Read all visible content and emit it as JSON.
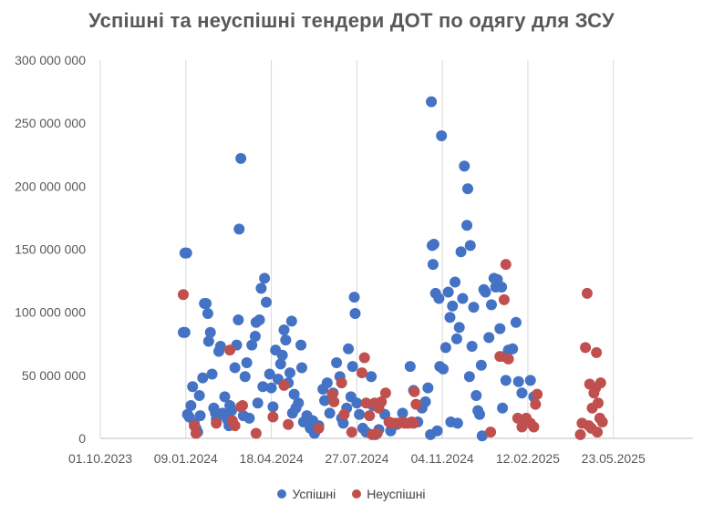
{
  "chart_data": {
    "type": "scatter",
    "title": "Успішні та неуспішні тендери ДОТ по одягу для ЗСУ",
    "xlabel": "",
    "ylabel": "",
    "x_tick_labels": [
      "01.10.2023",
      "09.01.2024",
      "18.04.2024",
      "27.07.2024",
      "04.11.2024",
      "12.02.2025",
      "23.05.2025"
    ],
    "y_tick_labels": [
      "0",
      "50 000 000",
      "100 000 000",
      "150 000 000",
      "200 000 000",
      "250 000 000",
      "300 000 000"
    ],
    "xlim": [
      "2023-10-01",
      "2025-08-31"
    ],
    "ylim": [
      0,
      300000000
    ],
    "grid": "vertical",
    "legend": "bottom",
    "series": [
      {
        "name": "Успішні",
        "color": "#4472C4",
        "points": [
          [
            "2024-01-09",
            147000000
          ],
          [
            "2024-01-11",
            147000000
          ],
          [
            "2024-01-07",
            84000000
          ],
          [
            "2024-01-09",
            84000000
          ],
          [
            "2024-01-12",
            19000000
          ],
          [
            "2024-01-14",
            17000000
          ],
          [
            "2024-01-16",
            26000000
          ],
          [
            "2024-01-18",
            41000000
          ],
          [
            "2024-01-20",
            12000000
          ],
          [
            "2024-01-22",
            8000000
          ],
          [
            "2024-01-24",
            5000000
          ],
          [
            "2024-01-27",
            18000000
          ],
          [
            "2024-01-30",
            48000000
          ],
          [
            "2024-02-01",
            107000000
          ],
          [
            "2024-02-03",
            107000000
          ],
          [
            "2024-02-05",
            99000000
          ],
          [
            "2024-02-06",
            77000000
          ],
          [
            "2024-02-08",
            84000000
          ],
          [
            "2024-02-10",
            51000000
          ],
          [
            "2024-02-12",
            24000000
          ],
          [
            "2024-02-15",
            15000000
          ],
          [
            "2024-02-18",
            69000000
          ],
          [
            "2024-02-20",
            73000000
          ],
          [
            "2024-02-22",
            20000000
          ],
          [
            "2024-02-25",
            33000000
          ],
          [
            "2024-02-28",
            15000000
          ],
          [
            "2024-03-01",
            10000000
          ],
          [
            "2024-03-04",
            22000000
          ],
          [
            "2024-03-08",
            56000000
          ],
          [
            "2024-03-10",
            74000000
          ],
          [
            "2024-03-12",
            94000000
          ],
          [
            "2024-03-13",
            166000000
          ],
          [
            "2024-03-15",
            222000000
          ],
          [
            "2024-03-20",
            49000000
          ],
          [
            "2024-03-22",
            60000000
          ],
          [
            "2024-03-25",
            16000000
          ],
          [
            "2024-03-28",
            74000000
          ],
          [
            "2024-04-01",
            81000000
          ],
          [
            "2024-04-02",
            92000000
          ],
          [
            "2024-04-08",
            119000000
          ],
          [
            "2024-04-06",
            94000000
          ],
          [
            "2024-04-12",
            127000000
          ],
          [
            "2024-04-14",
            108000000
          ],
          [
            "2024-04-10",
            41000000
          ],
          [
            "2024-04-18",
            51000000
          ],
          [
            "2024-04-20",
            40000000
          ],
          [
            "2024-04-22",
            25000000
          ],
          [
            "2024-04-25",
            70000000
          ],
          [
            "2024-04-28",
            47000000
          ],
          [
            "2024-05-01",
            59000000
          ],
          [
            "2024-05-03",
            66000000
          ],
          [
            "2024-05-05",
            86000000
          ],
          [
            "2024-05-07",
            78000000
          ],
          [
            "2024-05-10",
            44000000
          ],
          [
            "2024-05-12",
            52000000
          ],
          [
            "2024-05-14",
            93000000
          ],
          [
            "2024-05-17",
            35000000
          ],
          [
            "2024-05-19",
            24000000
          ],
          [
            "2024-05-22",
            28000000
          ],
          [
            "2024-05-25",
            74000000
          ],
          [
            "2024-05-26",
            56000000
          ],
          [
            "2024-05-28",
            13000000
          ],
          [
            "2024-06-01",
            18000000
          ],
          [
            "2024-06-05",
            8000000
          ],
          [
            "2024-06-10",
            4000000
          ],
          [
            "2024-06-15",
            10000000
          ],
          [
            "2024-06-20",
            39000000
          ],
          [
            "2024-06-22",
            30000000
          ],
          [
            "2024-06-25",
            44000000
          ],
          [
            "2024-06-28",
            20000000
          ],
          [
            "2024-07-02",
            36000000
          ],
          [
            "2024-07-06",
            60000000
          ],
          [
            "2024-07-10",
            49000000
          ],
          [
            "2024-07-14",
            12000000
          ],
          [
            "2024-07-18",
            24000000
          ],
          [
            "2024-07-20",
            71000000
          ],
          [
            "2024-07-23",
            33000000
          ],
          [
            "2024-07-25",
            57000000
          ],
          [
            "2024-07-27",
            112000000
          ],
          [
            "2024-07-28",
            99000000
          ],
          [
            "2024-07-30",
            28000000
          ],
          [
            "2024-08-02",
            19000000
          ],
          [
            "2024-08-06",
            8000000
          ],
          [
            "2024-08-10",
            5000000
          ],
          [
            "2024-08-16",
            49000000
          ],
          [
            "2024-08-18",
            26000000
          ],
          [
            "2024-08-21",
            3000000
          ],
          [
            "2024-08-25",
            7000000
          ],
          [
            "2024-09-01",
            19000000
          ],
          [
            "2024-09-08",
            6000000
          ],
          [
            "2024-09-15",
            11000000
          ],
          [
            "2024-09-22",
            20000000
          ],
          [
            "2024-10-01",
            57000000
          ],
          [
            "2024-10-05",
            38000000
          ],
          [
            "2024-10-10",
            13000000
          ],
          [
            "2024-10-15",
            24000000
          ],
          [
            "2024-10-19",
            29000000
          ],
          [
            "2024-10-22",
            40000000
          ],
          [
            "2024-10-25",
            3000000
          ],
          [
            "2024-10-26",
            267000000
          ],
          [
            "2024-10-27",
            153000000
          ],
          [
            "2024-10-29",
            154000000
          ],
          [
            "2024-10-28",
            138000000
          ],
          [
            "2024-10-31",
            115000000
          ],
          [
            "2024-11-04",
            111000000
          ],
          [
            "2024-11-07",
            240000000
          ],
          [
            "2024-11-05",
            57000000
          ],
          [
            "2024-11-09",
            55000000
          ],
          [
            "2024-11-12",
            72000000
          ],
          [
            "2024-11-15",
            116000000
          ],
          [
            "2024-11-17",
            96000000
          ],
          [
            "2024-11-20",
            105000000
          ],
          [
            "2024-11-23",
            124000000
          ],
          [
            "2024-11-25",
            79000000
          ],
          [
            "2024-11-28",
            88000000
          ],
          [
            "2024-11-30",
            148000000
          ],
          [
            "2024-12-02",
            111000000
          ],
          [
            "2024-12-04",
            216000000
          ],
          [
            "2024-12-07",
            169000000
          ],
          [
            "2024-12-08",
            198000000
          ],
          [
            "2024-12-11",
            153000000
          ],
          [
            "2024-12-13",
            73000000
          ],
          [
            "2024-12-15",
            104000000
          ],
          [
            "2024-12-10",
            49000000
          ],
          [
            "2024-12-18",
            34000000
          ],
          [
            "2024-12-20",
            22000000
          ],
          [
            "2024-12-24",
            58000000
          ],
          [
            "2024-12-27",
            118000000
          ],
          [
            "2024-12-29",
            116000000
          ],
          [
            "2025-01-02",
            80000000
          ],
          [
            "2025-01-05",
            106000000
          ],
          [
            "2025-01-08",
            127000000
          ],
          [
            "2025-01-10",
            120000000
          ],
          [
            "2025-01-12",
            126000000
          ],
          [
            "2025-01-15",
            87000000
          ],
          [
            "2025-01-17",
            120000000
          ],
          [
            "2025-01-20",
            65000000
          ],
          [
            "2025-01-22",
            46000000
          ],
          [
            "2025-01-25",
            70000000
          ],
          [
            "2025-01-30",
            71000000
          ],
          [
            "2025-02-03",
            92000000
          ],
          [
            "2025-02-06",
            45000000
          ],
          [
            "2025-02-10",
            36000000
          ],
          [
            "2025-02-14",
            15000000
          ],
          [
            "2025-02-20",
            46000000
          ],
          [
            "2025-02-24",
            33000000
          ],
          [
            "2025-01-18",
            24000000
          ],
          [
            "2024-12-25",
            2000000
          ],
          [
            "2024-11-18",
            13000000
          ],
          [
            "2024-11-26",
            12000000
          ],
          [
            "2024-12-22",
            19000000
          ],
          [
            "2024-11-02",
            6000000
          ],
          [
            "2024-03-18",
            18000000
          ],
          [
            "2024-04-04",
            28000000
          ],
          [
            "2024-05-15",
            20000000
          ],
          [
            "2024-06-08",
            14000000
          ],
          [
            "2024-01-26",
            34000000
          ],
          [
            "2024-02-14",
            20000000
          ],
          [
            "2024-03-02",
            26000000
          ],
          [
            "2024-07-12",
            16000000
          ]
        ]
      },
      {
        "name": "Неуспішні",
        "color": "#C0504D",
        "points": [
          [
            "2024-01-07",
            114000000
          ],
          [
            "2024-01-20",
            10000000
          ],
          [
            "2024-01-22",
            4000000
          ],
          [
            "2024-02-15",
            12000000
          ],
          [
            "2024-03-02",
            70000000
          ],
          [
            "2024-03-05",
            14000000
          ],
          [
            "2024-03-08",
            10000000
          ],
          [
            "2024-03-15",
            25000000
          ],
          [
            "2024-03-17",
            26000000
          ],
          [
            "2024-04-02",
            4000000
          ],
          [
            "2024-04-22",
            17000000
          ],
          [
            "2024-05-05",
            42000000
          ],
          [
            "2024-05-10",
            11000000
          ],
          [
            "2024-06-15",
            8000000
          ],
          [
            "2024-07-01",
            35000000
          ],
          [
            "2024-07-03",
            29000000
          ],
          [
            "2024-07-12",
            44000000
          ],
          [
            "2024-07-15",
            19000000
          ],
          [
            "2024-08-05",
            52000000
          ],
          [
            "2024-08-08",
            64000000
          ],
          [
            "2024-08-10",
            28000000
          ],
          [
            "2024-08-14",
            18000000
          ],
          [
            "2024-08-20",
            28000000
          ],
          [
            "2024-08-25",
            24000000
          ],
          [
            "2024-08-28",
            29000000
          ],
          [
            "2024-09-02",
            36000000
          ],
          [
            "2024-09-06",
            13000000
          ],
          [
            "2024-09-10",
            12000000
          ],
          [
            "2024-09-14",
            12000000
          ],
          [
            "2024-09-18",
            12000000
          ],
          [
            "2024-09-22",
            13000000
          ],
          [
            "2024-09-25",
            12000000
          ],
          [
            "2024-09-29",
            12000000
          ],
          [
            "2024-10-03",
            13000000
          ],
          [
            "2024-10-05",
            12000000
          ],
          [
            "2024-10-06",
            37000000
          ],
          [
            "2024-10-08",
            27000000
          ],
          [
            "2024-08-17",
            3000000
          ],
          [
            "2024-08-23",
            4000000
          ],
          [
            "2024-07-24",
            5000000
          ],
          [
            "2025-01-04",
            5000000
          ],
          [
            "2025-01-15",
            65000000
          ],
          [
            "2025-01-20",
            110000000
          ],
          [
            "2025-01-22",
            138000000
          ],
          [
            "2025-01-25",
            63000000
          ],
          [
            "2025-02-05",
            16000000
          ],
          [
            "2025-02-10",
            9000000
          ],
          [
            "2025-02-15",
            16000000
          ],
          [
            "2025-02-20",
            12000000
          ],
          [
            "2025-02-24",
            9000000
          ],
          [
            "2025-02-28",
            35000000
          ],
          [
            "2025-02-26",
            27000000
          ],
          [
            "2025-04-20",
            3000000
          ],
          [
            "2025-04-22",
            12000000
          ],
          [
            "2025-04-26",
            72000000
          ],
          [
            "2025-04-28",
            115000000
          ],
          [
            "2025-05-01",
            43000000
          ],
          [
            "2025-05-04",
            24000000
          ],
          [
            "2025-05-06",
            36000000
          ],
          [
            "2025-05-08",
            40000000
          ],
          [
            "2025-05-09",
            68000000
          ],
          [
            "2025-05-11",
            28000000
          ],
          [
            "2025-05-13",
            16000000
          ],
          [
            "2025-05-14",
            44000000
          ],
          [
            "2025-05-16",
            13000000
          ],
          [
            "2025-05-10",
            5000000
          ],
          [
            "2025-05-03",
            8000000
          ],
          [
            "2025-04-30",
            10000000
          ]
        ]
      }
    ]
  }
}
